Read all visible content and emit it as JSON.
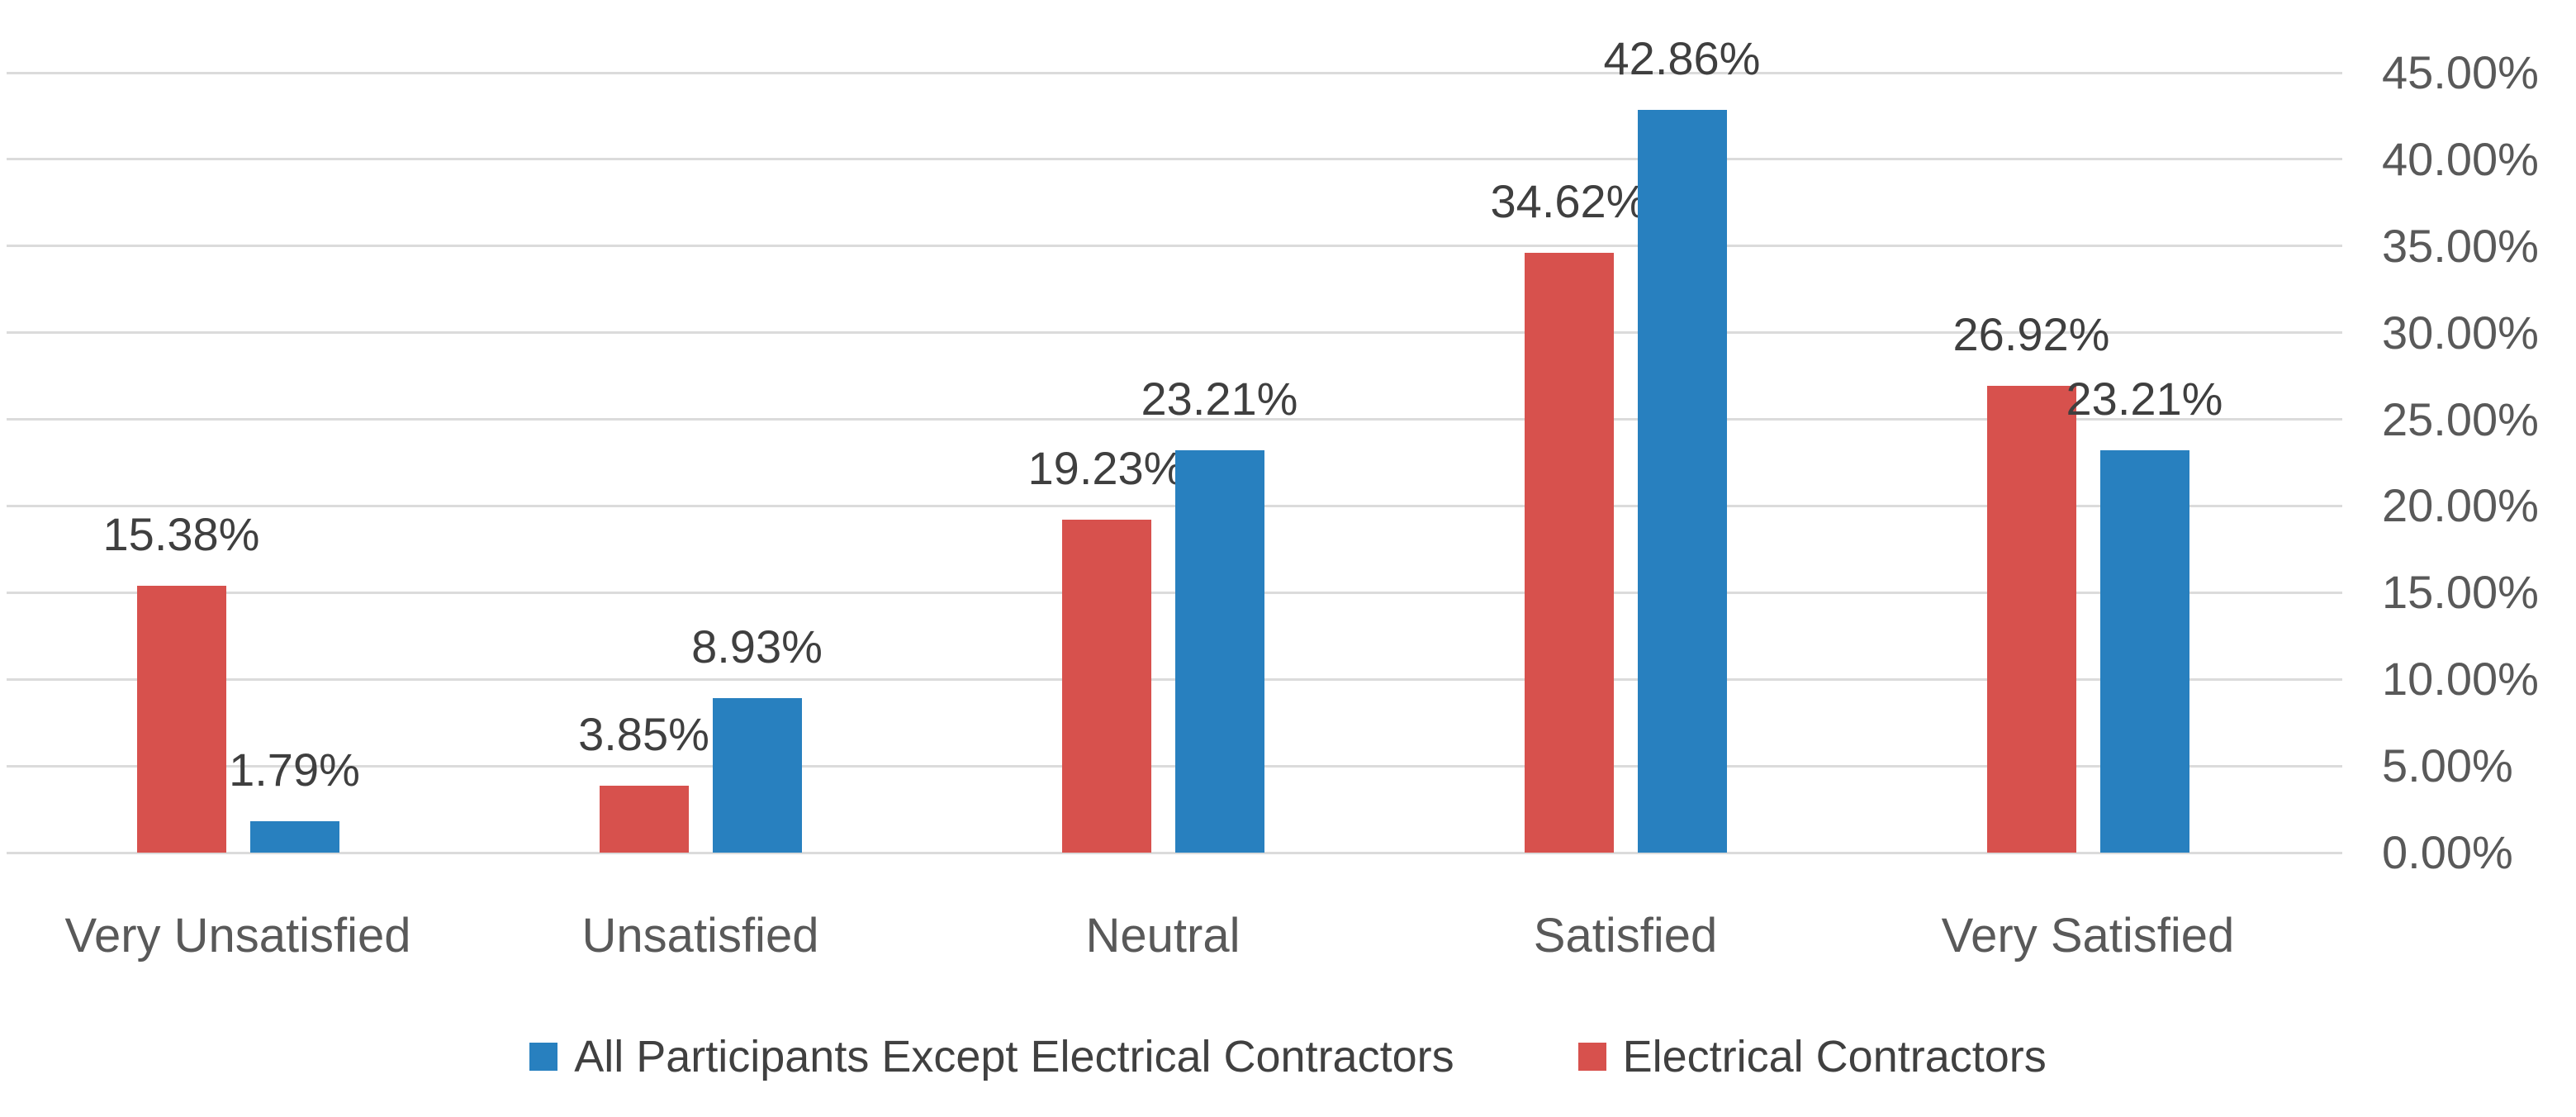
{
  "chart_data": {
    "type": "bar",
    "title": "",
    "categories": [
      "Very Unsatisfied",
      "Unsatisfied",
      "Neutral",
      "Satisfied",
      "Very Satisfied"
    ],
    "series": [
      {
        "name": "Electrical Contractors",
        "color": "#D7514D",
        "values": [
          15.38,
          3.85,
          19.23,
          34.62,
          26.92
        ],
        "labels": [
          "15.38%",
          "3.85%",
          "19.23%",
          "34.62%",
          "26.92%"
        ]
      },
      {
        "name": "All Participants Except Electrical Contractors",
        "color": "#2880BF",
        "values": [
          1.79,
          8.93,
          23.21,
          42.86,
          23.21
        ],
        "labels": [
          "1.79%",
          "8.93%",
          "23.21%",
          "42.86%",
          "23.21%"
        ]
      }
    ],
    "legend": [
      {
        "label": "All Participants Except Electrical Contractors",
        "color": "#2880BF"
      },
      {
        "label": "Electrical Contractors",
        "color": "#D7514D"
      }
    ],
    "y_axis": {
      "side": "right",
      "min": 0,
      "max": 45,
      "step": 5,
      "tick_labels": [
        "45.00%",
        "40.00%",
        "35.00%",
        "30.00%",
        "25.00%",
        "20.00%",
        "15.00%",
        "10.00%",
        "5.00%",
        "0.00%"
      ]
    },
    "x_axis": {
      "label": ""
    },
    "grid": "horizontal",
    "style": {
      "gridline_color": "#DBDBDB",
      "axis_text_color": "#595959",
      "data_label_color": "#3F3F3F",
      "legend_text_color": "#404040",
      "background": "#FFFFFF"
    }
  }
}
